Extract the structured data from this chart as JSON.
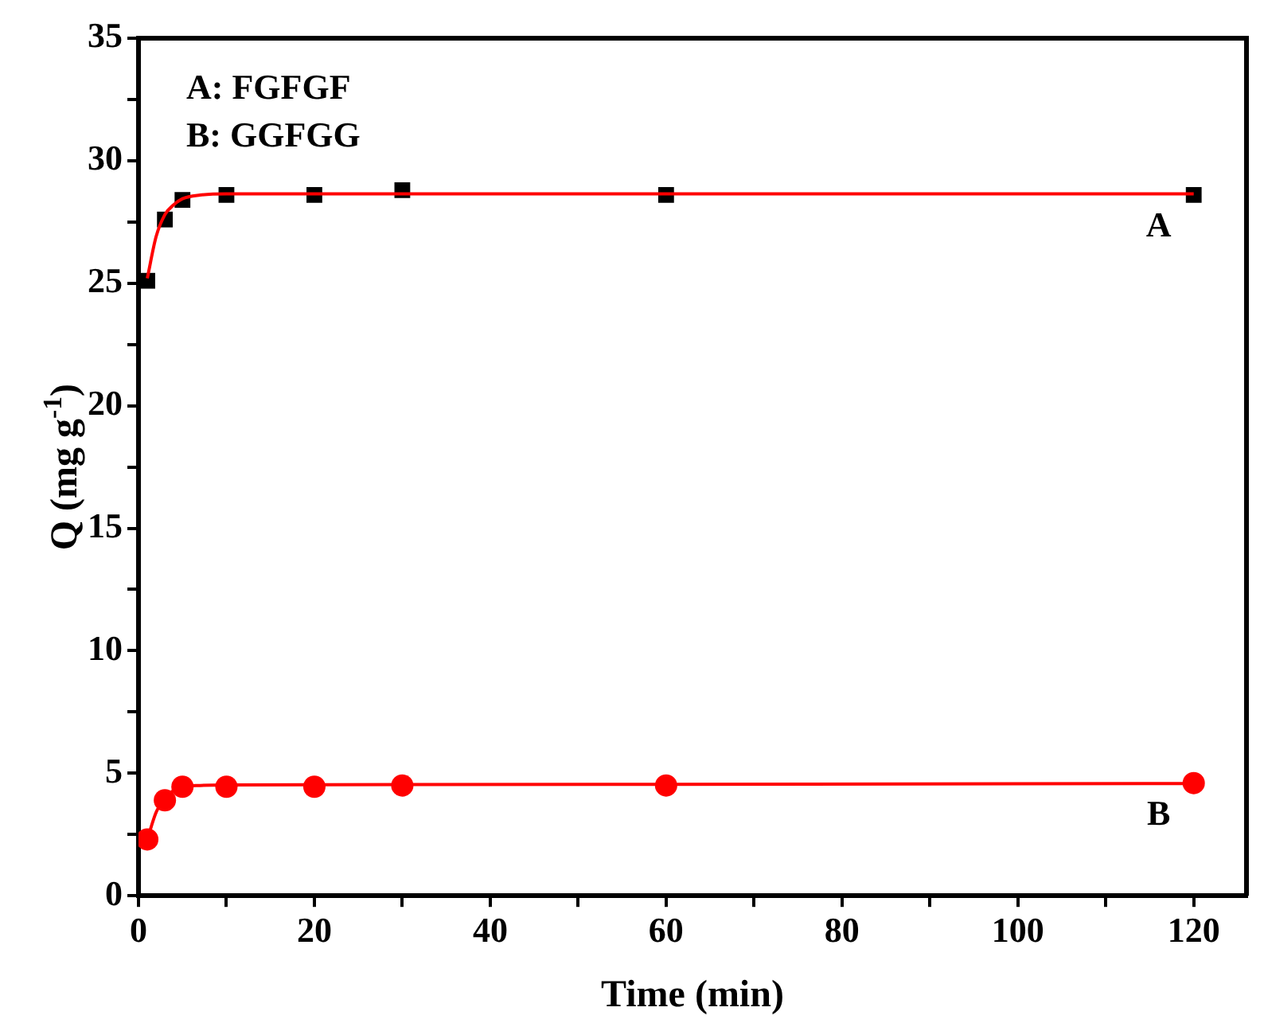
{
  "chart_data": {
    "type": "scatter",
    "xlabel": "Time (min)",
    "ylabel": "Q (mg g$^{-1}$)",
    "xlim": [
      0,
      126
    ],
    "ylim": [
      0,
      35
    ],
    "xticks": [
      0,
      {
        "value": 10,
        "label": null
      },
      20,
      {
        "value": 30,
        "label": null
      },
      40,
      {
        "value": 50,
        "label": null
      },
      60,
      {
        "value": 70,
        "label": null
      },
      80,
      {
        "value": 90,
        "label": null
      },
      100,
      {
        "value": 110,
        "label": null
      },
      120
    ],
    "yticks": [
      0,
      {
        "value": 2.5,
        "label": null
      },
      5,
      {
        "value": 7.5,
        "label": null
      },
      10,
      {
        "value": 12.5,
        "label": null
      },
      15,
      {
        "value": 17.5,
        "label": null
      },
      20,
      {
        "value": 22.5,
        "label": null
      },
      25,
      {
        "value": 27.5,
        "label": null
      },
      30,
      {
        "value": 32.5,
        "label": null
      },
      35
    ],
    "grid": false,
    "legend": false,
    "annotations": [
      "A: FGFGF",
      "B: GGFGG"
    ],
    "series": [
      {
        "type": "line",
        "marker": "none",
        "color": "#ff0000",
        "x": [
          1,
          2,
          3,
          4,
          5,
          7,
          10,
          20,
          60,
          120
        ],
        "values": [
          25.2,
          26.9,
          27.8,
          28.2,
          28.45,
          28.6,
          28.65,
          28.65,
          28.65,
          28.65
        ]
      },
      {
        "type": "line",
        "marker": "none",
        "color": "#ff0000",
        "x": [
          1,
          2,
          3,
          4,
          5,
          7,
          10,
          20,
          60,
          120
        ],
        "values": [
          2.3,
          3.4,
          4.0,
          4.3,
          4.45,
          4.5,
          4.52,
          4.53,
          4.55,
          4.58
        ]
      },
      {
        "type": "scatter",
        "name": "A",
        "marker": "square",
        "color": "#000000",
        "x": [
          1,
          3,
          5,
          10,
          20,
          30,
          60,
          120
        ],
        "values": [
          25.1,
          27.6,
          28.4,
          28.6,
          28.6,
          28.8,
          28.6,
          28.6
        ]
      },
      {
        "type": "scatter",
        "name": "B",
        "marker": "circle",
        "color": "#ff0000",
        "x": [
          1,
          3,
          5,
          10,
          20,
          30,
          60,
          120
        ],
        "values": [
          2.3,
          3.9,
          4.45,
          4.45,
          4.45,
          4.5,
          4.5,
          4.6
        ]
      }
    ]
  }
}
